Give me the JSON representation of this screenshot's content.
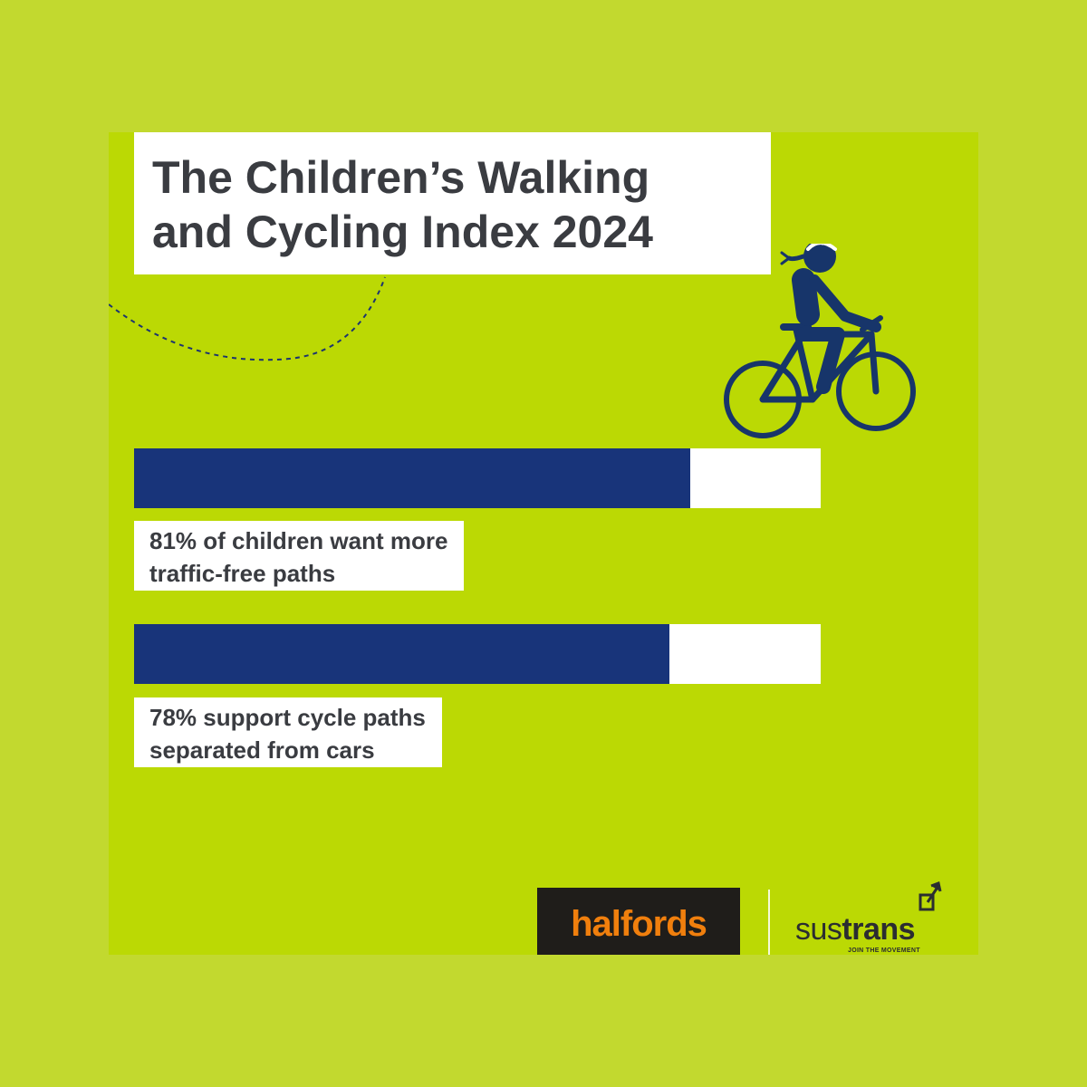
{
  "title": {
    "line1": "The Children’s Walking",
    "line2": "and Cycling Index 2024"
  },
  "chart_data": {
    "type": "bar",
    "orientation": "horizontal",
    "title": "The Children’s Walking and Cycling Index 2024",
    "xlim": [
      0,
      100
    ],
    "unit": "%",
    "series": [
      {
        "values": [
          81,
          78
        ]
      }
    ],
    "bars": [
      {
        "value": 81,
        "label_line1": "81% of children want more",
        "label_line2": "traffic-free paths"
      },
      {
        "value": 78,
        "label_line1": "78% support cycle paths",
        "label_line2": "separated from cars"
      }
    ]
  },
  "logos": {
    "halfords": "halfords",
    "sustrans_light": "sus",
    "sustrans_bold": "trans",
    "sustrans_tagline": "JOIN THE MOVEMENT"
  },
  "icons": {
    "cyclist": "cyclist-icon",
    "arc": "dashed-arc-decoration"
  },
  "colors": {
    "outer_background": "#c2d92f",
    "card_background": "#bbd904",
    "bar_fill": "#18347a",
    "bar_track": "#ffffff",
    "text": "#3a3c41",
    "halfords_orange": "#f07f0d"
  }
}
